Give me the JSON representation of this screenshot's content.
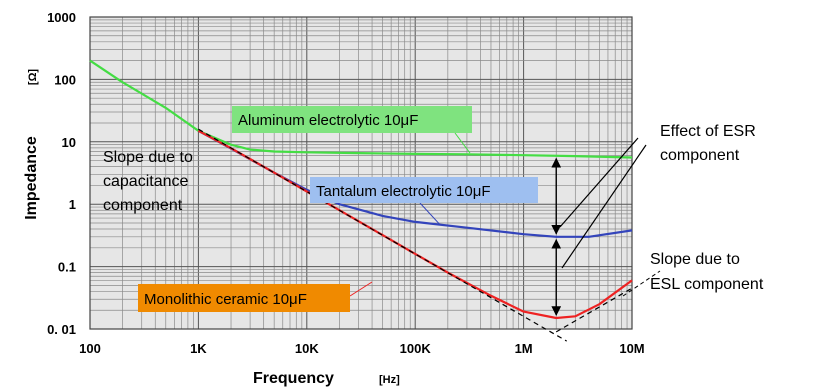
{
  "chart_data": {
    "type": "line",
    "xlabel": "Frequency",
    "x_unit": "[Hz]",
    "ylabel": "Impedance",
    "y_unit": "[Ω]",
    "x_scale": "log",
    "y_scale": "log",
    "xlim": [
      100,
      10000000
    ],
    "ylim": [
      0.01,
      1000
    ],
    "grid": true,
    "x_tick_labels": [
      {
        "value": 100,
        "label": "100"
      },
      {
        "value": 1000,
        "label": "1K"
      },
      {
        "value": 10000,
        "label": "10K"
      },
      {
        "value": 100000,
        "label": "100K"
      },
      {
        "value": 1000000,
        "label": "1M"
      },
      {
        "value": 10000000,
        "label": "10M"
      }
    ],
    "y_tick_labels": [
      {
        "value": 1000,
        "label": "1000"
      },
      {
        "value": 100,
        "label": "100"
      },
      {
        "value": 10,
        "label": "10"
      },
      {
        "value": 1,
        "label": "1"
      },
      {
        "value": 0.1,
        "label": "0.1"
      },
      {
        "value": 0.01,
        "label": "0. 01"
      }
    ],
    "series": [
      {
        "name": "Aluminum electrolytic 10μF",
        "color": "#44dd44",
        "label_bg": "#7fe37f",
        "x": [
          100,
          200,
          500,
          1000,
          2000,
          3000,
          5000,
          10000,
          30000,
          100000,
          300000,
          1000000,
          3000000,
          10000000
        ],
        "y": [
          200,
          90,
          35,
          15,
          9,
          7.5,
          7,
          6.8,
          6.6,
          6.4,
          6.3,
          6.1,
          5.9,
          5.6
        ]
      },
      {
        "name": "Tantalum electrolytic 10μF",
        "color": "#3344bb",
        "label_bg": "#9ebff0",
        "x": [
          1000,
          2000,
          5000,
          10000,
          20000,
          50000,
          100000,
          300000,
          1000000,
          2000000,
          4000000,
          10000000
        ],
        "y": [
          15,
          7.8,
          3.2,
          1.7,
          1.0,
          0.65,
          0.52,
          0.42,
          0.33,
          0.3,
          0.3,
          0.38
        ]
      },
      {
        "name": "Monolithic ceramic 10μF",
        "color": "#ee2222",
        "label_bg": "#f08a00",
        "x": [
          1000,
          2000,
          5000,
          10000,
          20000,
          50000,
          100000,
          200000,
          500000,
          1000000,
          2000000,
          3000000,
          5000000,
          10000000
        ],
        "y": [
          15,
          7.9,
          3.2,
          1.6,
          0.8,
          0.32,
          0.16,
          0.08,
          0.034,
          0.019,
          0.015,
          0.016,
          0.025,
          0.06
        ]
      },
      {
        "name": "",
        "style": "dashed",
        "color": "#000000",
        "x": [
          1000,
          10000,
          100000,
          1000000,
          2500000
        ],
        "y": [
          15.9,
          1.59,
          0.159,
          0.0159,
          0.0064
        ]
      },
      {
        "name": "",
        "style": "dashed",
        "color": "#000000",
        "x": [
          2000000,
          10000000
        ],
        "y": [
          0.009,
          0.045
        ]
      }
    ],
    "annotations": [
      {
        "lines": [
          "Slope due to",
          "capacitance",
          "component"
        ]
      },
      {
        "lines": [
          "Effect of ESR",
          "component"
        ]
      },
      {
        "lines": [
          "Slope due to",
          "ESL component"
        ]
      }
    ],
    "esr_arrows": [
      {
        "x": 2000000,
        "y_top": 6,
        "y_bottom": 0.3
      },
      {
        "x": 2000000,
        "y_top": 0.3,
        "y_bottom": 0.015
      }
    ]
  }
}
